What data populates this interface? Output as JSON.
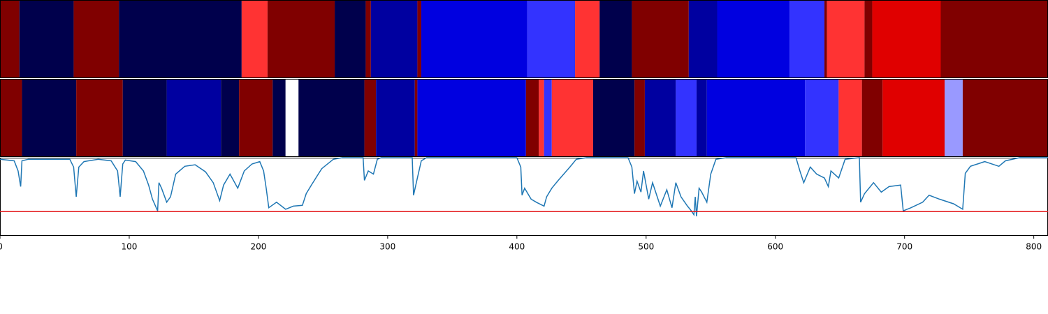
{
  "chart_data": {
    "type": "segments",
    "xlim": [
      0,
      811
    ],
    "xticks": [
      0,
      100,
      200,
      300,
      400,
      500,
      600,
      700,
      800
    ],
    "strips": [
      {
        "boundaries": [
          0,
          15,
          57,
          92,
          187,
          207,
          259,
          283,
          287,
          323,
          326,
          408,
          445,
          464,
          489,
          533,
          555,
          611,
          638,
          640,
          669,
          675,
          728,
          811
        ],
        "colors": [
          "#800000",
          "#00004c",
          "#800000",
          "#00004c",
          "#ff3333",
          "#800000",
          "#00004c",
          "#800000",
          "#0000a0",
          "#800000",
          "#0000e0",
          "#3333ff",
          "#ff3333",
          "#00004c",
          "#800000",
          "#0000a0",
          "#0000e0",
          "#3333ff",
          "#800000",
          "#ff3333",
          "#800000",
          "#e00000",
          "#800000"
        ]
      },
      {
        "boundaries": [
          0,
          17,
          59,
          95,
          129,
          171,
          185,
          211,
          221,
          231,
          282,
          291,
          321,
          323,
          407,
          417,
          421,
          427,
          459,
          491,
          499,
          523,
          539,
          547,
          623,
          649,
          667,
          683,
          731,
          745,
          811
        ],
        "colors": [
          "#800000",
          "#00004c",
          "#800000",
          "#00004c",
          "#0000a0",
          "#00004c",
          "#800000",
          "#00004c",
          "#ffffff",
          "#00004c",
          "#800000",
          "#0000a0",
          "#800000",
          "#0000e0",
          "#800000",
          "#ff3333",
          "#3333ff",
          "#ff3333",
          "#00004c",
          "#800000",
          "#0000a0",
          "#3333ff",
          "#0000a0",
          "#0000e0",
          "#3333ff",
          "#ff3333",
          "#800000",
          "#e00000",
          "#9999ff",
          "#800000"
        ]
      }
    ],
    "ylim": [
      0,
      1
    ],
    "line": {
      "color": "#1f77b4",
      "x": [
        0,
        11,
        14,
        16,
        17,
        22,
        54,
        57,
        59,
        61,
        65,
        76,
        86,
        91,
        93,
        95,
        97,
        105,
        111,
        115,
        118,
        122,
        123,
        125,
        129,
        132,
        136,
        143,
        151,
        159,
        165,
        170,
        173,
        178,
        184,
        189,
        195,
        201,
        204,
        206,
        208,
        214,
        221,
        227,
        234,
        237,
        241,
        249,
        258,
        265,
        281,
        282,
        285,
        289,
        292,
        295,
        319,
        320,
        323,
        326,
        330,
        400,
        403,
        404,
        406,
        411,
        415,
        421,
        423,
        427,
        432,
        441,
        446,
        454,
        486,
        489,
        491,
        493,
        496,
        498,
        502,
        505,
        511,
        516,
        520,
        523,
        527,
        532,
        535,
        537,
        538,
        539,
        541,
        543,
        547,
        550,
        554,
        562,
        616,
        619,
        622,
        627,
        632,
        638,
        641,
        643,
        649,
        654,
        665,
        666,
        669,
        676,
        682,
        688,
        697,
        699,
        705,
        714,
        719,
        727,
        738,
        745,
        747,
        751,
        762,
        773,
        778,
        789,
        811
      ],
      "values": [
        0.98,
        0.96,
        0.83,
        0.63,
        0.96,
        0.98,
        0.98,
        0.88,
        0.5,
        0.88,
        0.95,
        0.98,
        0.96,
        0.83,
        0.5,
        0.92,
        0.97,
        0.95,
        0.83,
        0.65,
        0.47,
        0.32,
        0.68,
        0.61,
        0.43,
        0.5,
        0.79,
        0.89,
        0.91,
        0.82,
        0.68,
        0.45,
        0.65,
        0.79,
        0.61,
        0.83,
        0.92,
        0.95,
        0.83,
        0.61,
        0.36,
        0.43,
        0.34,
        0.38,
        0.39,
        0.54,
        0.65,
        0.86,
        0.98,
        1.0,
        1.0,
        0.71,
        0.83,
        0.79,
        0.98,
        1.0,
        1.0,
        0.52,
        0.74,
        0.96,
        1.0,
        1.0,
        0.88,
        0.52,
        0.61,
        0.47,
        0.43,
        0.38,
        0.5,
        0.61,
        0.71,
        0.88,
        0.98,
        1.0,
        1.0,
        0.88,
        0.54,
        0.7,
        0.56,
        0.83,
        0.47,
        0.68,
        0.38,
        0.59,
        0.36,
        0.68,
        0.5,
        0.38,
        0.32,
        0.27,
        0.5,
        0.25,
        0.61,
        0.56,
        0.43,
        0.79,
        0.98,
        1.0,
        1.0,
        0.83,
        0.68,
        0.88,
        0.79,
        0.74,
        0.63,
        0.83,
        0.74,
        0.98,
        1.0,
        0.43,
        0.54,
        0.68,
        0.56,
        0.63,
        0.65,
        0.32,
        0.36,
        0.43,
        0.52,
        0.47,
        0.41,
        0.34,
        0.8,
        0.89,
        0.95,
        0.89,
        0.96,
        1.0,
        1.0
      ]
    },
    "threshold": {
      "value": 0.31,
      "color": "#e31a1c"
    }
  }
}
